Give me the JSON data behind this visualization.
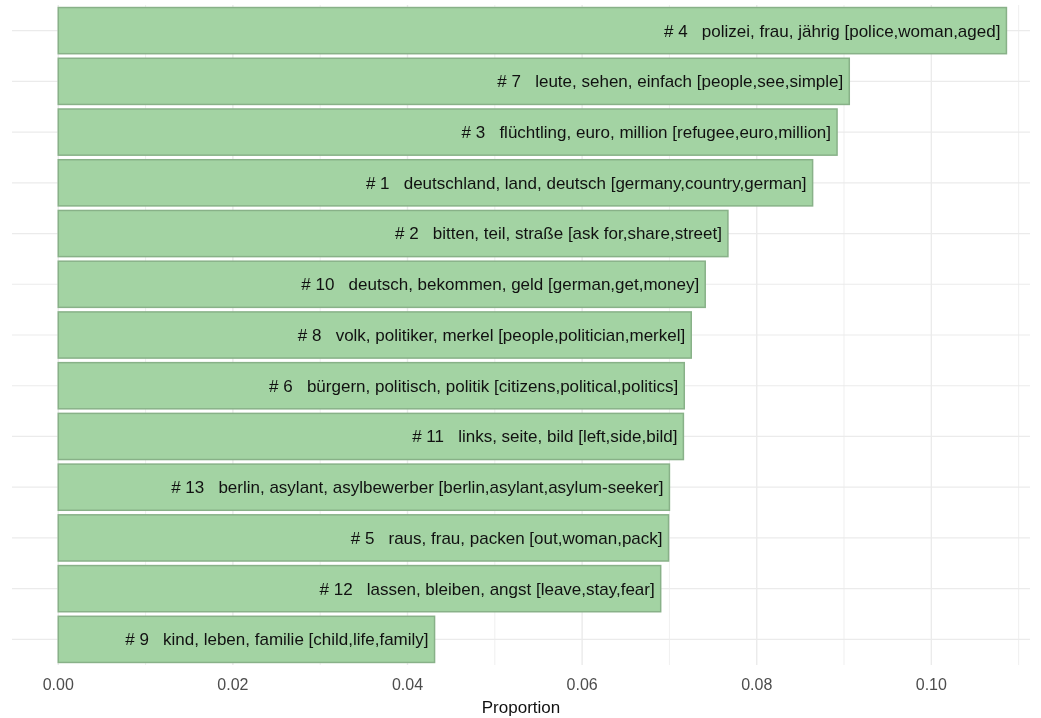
{
  "chart_data": {
    "type": "bar",
    "orientation": "horizontal",
    "xlabel": "Proportion",
    "categories": [
      "# 4   polizei, frau, jährig [police,woman,aged]",
      "# 7   leute, sehen, einfach [people,see,simple]",
      "# 3   flüchtling, euro, million [refugee,euro,million]",
      "# 1   deutschland, land, deutsch [germany,country,german]",
      "# 2   bitten, teil, straße [ask for,share,street]",
      "# 10   deutsch, bekommen, geld [german,get,money]",
      "# 8   volk, politiker, merkel [people,politician,merkel]",
      "# 6   bürgern, politisch, politik [citizens,political,politics]",
      "# 11   links, seite, bild [left,side,bild]",
      "# 13   berlin, asylant, asylbewerber [berlin,asylant,asylum-seeker]",
      "# 5   raus, frau, packen [out,woman,pack]",
      "# 12   lassen, bleiben, angst [leave,stay,fear]",
      "# 9   kind, leben, familie [child,life,family]"
    ],
    "values": [
      0.1086,
      0.0906,
      0.0892,
      0.0864,
      0.0767,
      0.0741,
      0.0725,
      0.0717,
      0.0716,
      0.07,
      0.0699,
      0.069,
      0.0431
    ],
    "color": "#a3d3a3",
    "xlim": [
      -0.0053,
      0.1113
    ],
    "xticks": [
      {
        "value": 0,
        "label": "0.00"
      },
      {
        "value": 0.01,
        "label": null
      },
      {
        "value": 0.02,
        "label": "0.02"
      },
      {
        "value": 0.03,
        "label": null
      },
      {
        "value": 0.04,
        "label": "0.04"
      },
      {
        "value": 0.05,
        "label": null
      },
      {
        "value": 0.06,
        "label": "0.06"
      },
      {
        "value": 0.07,
        "label": null
      },
      {
        "value": 0.08,
        "label": "0.08"
      },
      {
        "value": 0.09,
        "label": null
      },
      {
        "value": 0.1,
        "label": "0.10"
      },
      {
        "value": 0.11,
        "label": null
      }
    ],
    "grid": true
  }
}
